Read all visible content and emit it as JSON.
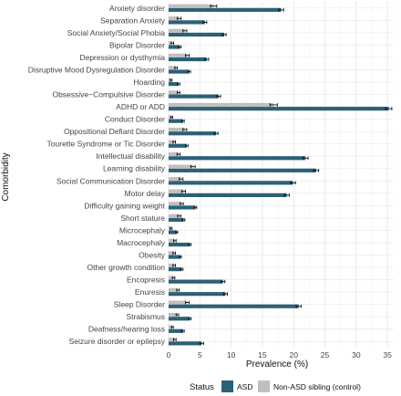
{
  "chart_data": {
    "type": "bar",
    "orientation": "horizontal",
    "title": "",
    "xlabel": "Prevalence (%)",
    "ylabel": "Comorbidity",
    "xlim": [
      0,
      36
    ],
    "xticks": [
      0,
      5,
      10,
      15,
      20,
      25,
      30,
      35
    ],
    "grid": true,
    "legend_position": "bottom",
    "legend_title": "Status",
    "categories": [
      "Anxiety disorder",
      "Separation Anxiety",
      "Social Anxiety/Social Phobia",
      "Bipolar Disorder",
      "Depression or dysthymia",
      "Disruptive Mood Dysregulation Disorder",
      "Hoarding",
      "Obsessive−Compulsive Disorder",
      "ADHD or ADD",
      "Conduct Disorder",
      "Oppositional Defiant Disorder",
      "Tourette Syndrome or Tic Disorder",
      "Intellectual disability",
      "Learning disability",
      "Social Communication Disorder",
      "Motor delay",
      "Difficulty gaining weight",
      "Short stature",
      "Microcephaly",
      "Macrocephaly",
      "Obesity",
      "Other growth condition",
      "Encopresis",
      "Enuresis",
      "Sleep Disorder",
      "Strabismus",
      "Deafness/hearing loss",
      "Seizure disorder or epilepsy"
    ],
    "series": [
      {
        "name": "ASD",
        "color": "#2b6178",
        "values": [
          18.0,
          5.8,
          8.9,
          1.8,
          6.1,
          3.3,
          1.6,
          8.0,
          35.2,
          2.3,
          7.6,
          2.9,
          21.9,
          23.6,
          19.9,
          18.9,
          4.3,
          2.4,
          1.3,
          3.4,
          1.9,
          2.1,
          8.7,
          9.1,
          20.8,
          3.4,
          2.3,
          5.3
        ],
        "errors": [
          0.4,
          0.3,
          0.3,
          0.2,
          0.3,
          0.2,
          0.2,
          0.3,
          0.5,
          0.2,
          0.3,
          0.2,
          0.4,
          0.4,
          0.4,
          0.4,
          0.2,
          0.2,
          0.15,
          0.2,
          0.15,
          0.2,
          0.3,
          0.3,
          0.4,
          0.2,
          0.2,
          0.3
        ]
      },
      {
        "name": "Non-ASD sibling (control)",
        "color": "#c0c0c0",
        "values": [
          7.2,
          1.7,
          2.6,
          0.6,
          3.0,
          1.2,
          0.4,
          1.6,
          16.8,
          0.5,
          2.6,
          0.9,
          1.6,
          3.9,
          2.0,
          2.4,
          2.1,
          1.7,
          0.4,
          1.0,
          0.9,
          0.9,
          0.8,
          1.5,
          3.0,
          1.4,
          0.6,
          1.0
        ],
        "errors": [
          0.5,
          0.3,
          0.3,
          0.2,
          0.3,
          0.2,
          0.15,
          0.2,
          0.6,
          0.15,
          0.3,
          0.2,
          0.25,
          0.35,
          0.3,
          0.3,
          0.25,
          0.25,
          0.15,
          0.2,
          0.2,
          0.2,
          0.2,
          0.2,
          0.3,
          0.2,
          0.15,
          0.2
        ]
      }
    ]
  }
}
